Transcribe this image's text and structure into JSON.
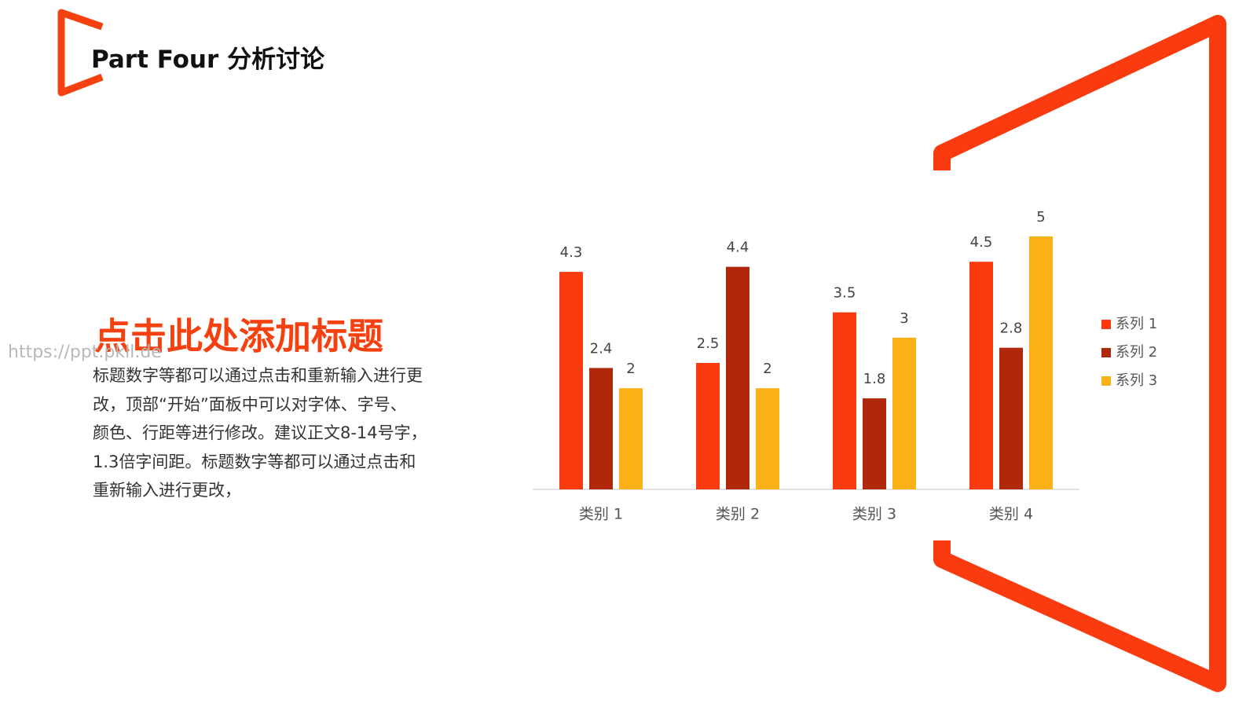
{
  "header": {
    "title": "Part Four 分析讨论"
  },
  "heading": "点击此处添加标题",
  "watermark": "https://ppt.pkll.de",
  "body_lines": [
    "标题数字等都可以通过点击和重新输入进行更",
    "改，顶部“开始”面板中可以对字体、字号、",
    "颜色、行距等进行修改。建议正文8-14号字，",
    "1.3倍字间距。标题数字等都可以通过点击和",
    "重新输入进行更改，"
  ],
  "chart_data": {
    "type": "bar",
    "categories": [
      "类别 1",
      "类别 2",
      "类别 3",
      "类别 4"
    ],
    "series": [
      {
        "name": "系列 1",
        "color": "#fa3b10",
        "values": [
          4.3,
          2.5,
          3.5,
          4.5
        ]
      },
      {
        "name": "系列 2",
        "color": "#b0270c",
        "values": [
          2.4,
          4.4,
          1.8,
          2.8
        ]
      },
      {
        "name": "系列 3",
        "color": "#fbb116",
        "values": [
          2,
          2,
          3,
          5
        ]
      }
    ],
    "ylim": [
      0,
      5
    ],
    "legend": "right"
  }
}
